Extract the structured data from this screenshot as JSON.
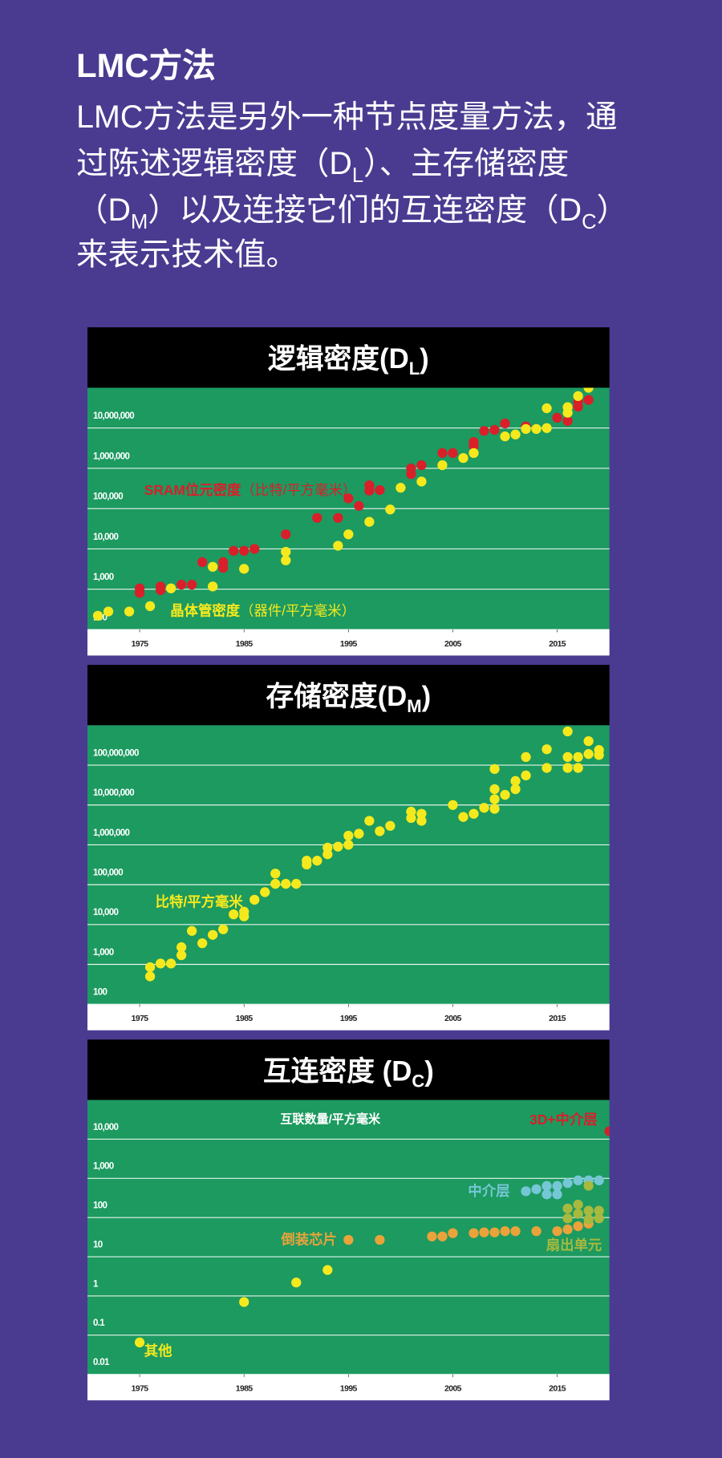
{
  "heading": "LMC方法",
  "intro": [
    [
      "LMC方法是另外一种节点度量方法，通"
    ],
    [
      "过陈述逻辑密度（D",
      "L",
      "）、主存储密度"
    ],
    [
      "（D",
      "M",
      "）以及连接它们的互连密度（D",
      "C",
      "）"
    ],
    [
      "来表示技术值。"
    ]
  ],
  "chart_data": [
    {
      "type": "scatter",
      "title": "逻辑密度(D",
      "title_sub": "L",
      "title_end": ")",
      "log_scale": true,
      "grid": true,
      "xlim": [
        1970,
        2020
      ],
      "xticks": [
        1975,
        1985,
        1995,
        2005,
        2015
      ],
      "ylim": [
        100,
        100000000
      ],
      "yticks": [
        100,
        {
          "value": 1000,
          "label": "1,000"
        },
        {
          "value": 10000,
          "label": "10,000"
        },
        {
          "value": 100000,
          "label": "100,000"
        },
        {
          "value": 1000000,
          "label": "1,000,000"
        },
        {
          "value": 10000000,
          "label": "10,000,000"
        }
      ],
      "series": [
        {
          "name": "SRAM位元密度",
          "unit": "（比特/平方毫米）",
          "color": "#d91f2a",
          "x": [
            1975,
            1975,
            1977,
            1977,
            1979,
            1980,
            1981,
            1983,
            1983,
            1984,
            1985,
            1986,
            1989,
            1992,
            1994,
            1995,
            1996,
            1997,
            1997,
            1998,
            2001,
            2001,
            2002,
            2004,
            2005,
            2007,
            2007,
            2008,
            2009,
            2010,
            2012,
            2015,
            2016,
            2017,
            2017,
            2018
          ],
          "values": [
            1050,
            810,
            1170,
            950,
            1300,
            1300,
            4700,
            4700,
            3400,
            9000,
            9000,
            10000,
            23000,
            59000,
            59000,
            180000,
            117000,
            380000,
            280000,
            290000,
            1000000,
            720000,
            1200000,
            2400000,
            2400000,
            4500000,
            3600000,
            8500000,
            9000000,
            13000000,
            11000000,
            18000000,
            15000000,
            45000000,
            34000000,
            50000000
          ]
        },
        {
          "name": "晶体管密度",
          "unit": "（器件/平方毫米）",
          "color": "#f5e91d",
          "x": [
            1971,
            1972,
            1974,
            1976,
            1978,
            1982,
            1982,
            1985,
            1989,
            1989,
            1994,
            1995,
            1997,
            1999,
            2000,
            2002,
            2004,
            2006,
            2007,
            2010,
            2011,
            2012,
            2013,
            2014,
            2014,
            2016,
            2016,
            2017,
            2018
          ],
          "values": [
            220,
            280,
            280,
            380,
            1050,
            1170,
            3600,
            3200,
            8500,
            5200,
            12000,
            23000,
            47000,
            95000,
            330000,
            470000,
            1200000,
            1800000,
            2400000,
            6200000,
            6900000,
            9500000,
            9500000,
            10000000,
            31000000,
            33000000,
            24000000,
            62000000,
            100000000
          ]
        }
      ]
    },
    {
      "type": "scatter",
      "title": "存储密度(D",
      "title_sub": "M",
      "title_end": ")",
      "log_scale": true,
      "grid": true,
      "xlim": [
        1970,
        2020
      ],
      "xticks": [
        1975,
        1985,
        1995,
        2005,
        2015
      ],
      "ylim": [
        100,
        1000000000
      ],
      "yticks": [
        100,
        {
          "value": 1000,
          "label": "1,000"
        },
        {
          "value": 10000,
          "label": "10,000"
        },
        {
          "value": 100000,
          "label": "100,000"
        },
        {
          "value": 1000000,
          "label": "1,000,000"
        },
        {
          "value": 10000000,
          "label": "10,000,000"
        },
        {
          "value": 100000000,
          "label": "100,000,000"
        }
      ],
      "series": [
        {
          "name": "比特/平方毫米",
          "color": "#f5e91d",
          "x": [
            1976,
            1976,
            1977,
            1978,
            1979,
            1979,
            1980,
            1981,
            1982,
            1983,
            1984,
            1985,
            1985,
            1986,
            1987,
            1988,
            1988,
            1989,
            1990,
            1991,
            1991,
            1992,
            1993,
            1993,
            1994,
            1995,
            1995,
            1996,
            1997,
            1998,
            1999,
            2001,
            2001,
            2002,
            2002,
            2005,
            2006,
            2007,
            2008,
            2009,
            2009,
            2009,
            2009,
            2010,
            2011,
            2011,
            2012,
            2012,
            2014,
            2014,
            2016,
            2016,
            2016,
            2017,
            2017,
            2018,
            2018,
            2019,
            2019
          ],
          "values": [
            850,
            500,
            1050,
            1050,
            2700,
            1700,
            6900,
            3400,
            5500,
            7600,
            18000,
            21000,
            16000,
            42000,
            65000,
            190000,
            105000,
            105000,
            105000,
            400000,
            320000,
            400000,
            850000,
            580000,
            900000,
            1700000,
            1000000,
            1900000,
            4000000,
            2200000,
            3000000,
            6800000,
            4700000,
            6000000,
            4000000,
            10000000,
            5000000,
            6000000,
            8500000,
            80000000,
            25000000,
            14000000,
            8000000,
            18000000,
            40000000,
            25000000,
            160000000,
            55000000,
            250000000,
            85000000,
            700000000,
            160000000,
            85000000,
            160000000,
            85000000,
            400000000,
            190000000,
            240000000,
            180000000
          ]
        }
      ]
    },
    {
      "type": "scatter",
      "title": "互连密度 (D",
      "title_sub": "C",
      "title_end": ")",
      "ylabel": "互联数量/平方毫米",
      "log_scale": true,
      "grid": true,
      "xlim": [
        1970,
        2020
      ],
      "xticks": [
        1975,
        1985,
        1995,
        2005,
        2015
      ],
      "ylim": [
        0.01,
        100000
      ],
      "yticks": [
        0.01,
        0.1,
        1,
        10,
        100,
        {
          "value": 1000,
          "label": "1,000"
        },
        {
          "value": 10000,
          "label": "10,000"
        }
      ],
      "series": [
        {
          "name": "其他",
          "color": "#f5e91d",
          "x": [
            1975,
            1985,
            1990,
            1993
          ],
          "values": [
            0.065,
            0.7,
            2.2,
            4.6
          ]
        },
        {
          "name": "倒装芯片",
          "color": "#eaa33a",
          "x": [
            1995,
            1998,
            2003,
            2004,
            2005,
            2007,
            2008,
            2009,
            2010,
            2011,
            2013,
            2015,
            2016,
            2017,
            2018
          ],
          "values": [
            27,
            27,
            33,
            33,
            40,
            40,
            42,
            42,
            45,
            45,
            45,
            45,
            50,
            60,
            70
          ]
        },
        {
          "name": "中介层",
          "color": "#76c7d5",
          "x": [
            2012,
            2013,
            2014,
            2014,
            2015,
            2015,
            2016,
            2017,
            2018,
            2019
          ],
          "values": [
            470,
            530,
            640,
            390,
            640,
            390,
            760,
            890,
            890,
            890
          ]
        },
        {
          "name": "扇出单元",
          "color": "#a7b93f",
          "x": [
            2016,
            2016,
            2017,
            2017,
            2018,
            2018,
            2018,
            2019,
            2019
          ],
          "values": [
            170,
            95,
            215,
            125,
            650,
            150,
            90,
            150,
            95
          ]
        },
        {
          "name": "3D+中介层",
          "color": "#d91f2a",
          "x": [
            2020
          ],
          "values": [
            16000
          ]
        }
      ]
    }
  ]
}
